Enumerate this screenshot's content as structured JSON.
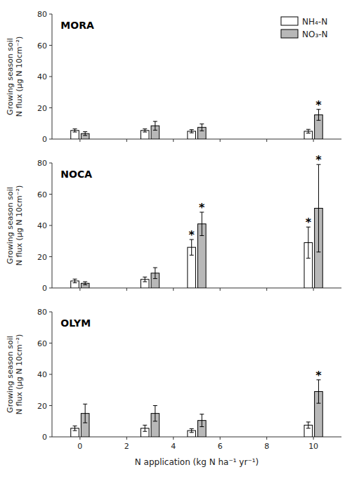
{
  "chart_data": [
    {
      "type": "bar",
      "title": "MORA",
      "x": [
        0,
        3,
        5,
        10
      ],
      "series": [
        {
          "name": "NH₄-N",
          "color": "#ffffff",
          "values": [
            5.5,
            5.5,
            5.0,
            5.0
          ],
          "errors": [
            1.0,
            1.0,
            1.0,
            1.2
          ]
        },
        {
          "name": "NO₃-N",
          "color": "#b8b8b8",
          "values": [
            3.5,
            8.5,
            7.5,
            15.5
          ],
          "errors": [
            1.2,
            2.8,
            2.2,
            3.5
          ]
        }
      ],
      "annotations": [
        {
          "text": "*",
          "series": "NO₃-N",
          "x": 10
        }
      ],
      "ylabel": "Growing season soil\nN flux (μg N 10cm⁻²)",
      "xlim": [
        -1.2,
        11.2
      ],
      "xticks": [
        0,
        2,
        4,
        6,
        8,
        10
      ],
      "ylim": [
        0,
        80
      ],
      "yticks": [
        0,
        20,
        40,
        60,
        80
      ],
      "tick_labels": "y",
      "legend": "upper right"
    },
    {
      "type": "bar",
      "title": "NOCA",
      "x": [
        0,
        3,
        5,
        10
      ],
      "series": [
        {
          "name": "NH₄-N",
          "color": "#ffffff",
          "values": [
            4.5,
            5.5,
            26.0,
            29.0
          ],
          "errors": [
            1.2,
            1.5,
            5.0,
            10.0
          ]
        },
        {
          "name": "NO₃-N",
          "color": "#b8b8b8",
          "values": [
            3.0,
            9.5,
            41.0,
            51.0
          ],
          "errors": [
            1.0,
            3.5,
            7.5,
            28.0
          ]
        }
      ],
      "annotations": [
        {
          "text": "*",
          "series": "NH₄-N",
          "x": 5
        },
        {
          "text": "*",
          "series": "NH₄-N",
          "x": 10
        },
        {
          "text": "*",
          "series": "NO₃-N",
          "x": 5
        },
        {
          "text": "*",
          "series": "NO₃-N",
          "x": 10
        }
      ],
      "ylabel": "Growing season soil\nN flux (μg N 10cm⁻²)",
      "xlim": [
        -1.2,
        11.2
      ],
      "xticks": [
        0,
        2,
        4,
        6,
        8,
        10
      ],
      "ylim": [
        0,
        80
      ],
      "yticks": [
        0,
        20,
        40,
        60,
        80
      ],
      "tick_labels": "y"
    },
    {
      "type": "bar",
      "title": "OLYM",
      "x": [
        0,
        3,
        5,
        10
      ],
      "series": [
        {
          "name": "NH₄-N",
          "color": "#ffffff",
          "values": [
            5.5,
            5.5,
            4.0,
            7.5
          ],
          "errors": [
            1.5,
            2.0,
            1.2,
            2.0
          ]
        },
        {
          "name": "NO₃-N",
          "color": "#b8b8b8",
          "values": [
            15.0,
            15.0,
            10.5,
            29.0
          ],
          "errors": [
            6.0,
            5.0,
            4.0,
            7.5
          ]
        }
      ],
      "annotations": [
        {
          "text": "*",
          "series": "NO₃-N",
          "x": 10
        }
      ],
      "xlabel": "N application (kg N ha⁻¹ yr⁻¹)",
      "ylabel": "Growing season soil\nN flux (μg N 10cm⁻²)",
      "xlim": [
        -1.2,
        11.2
      ],
      "xticks": [
        0,
        2,
        4,
        6,
        8,
        10
      ],
      "ylim": [
        0,
        80
      ],
      "yticks": [
        0,
        20,
        40,
        60,
        80
      ],
      "tick_labels": true
    }
  ]
}
